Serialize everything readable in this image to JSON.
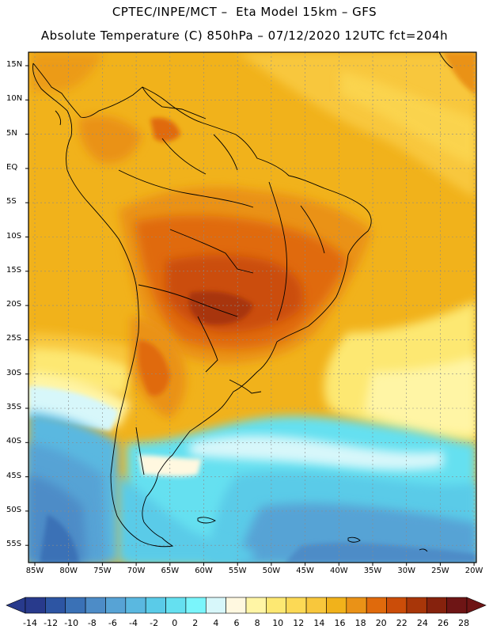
{
  "header": {
    "line1": "CPTEC/INPE/MCT –  Eta Model 15km – GFS",
    "line2": "Absolute Temperature (C) 850hPa – 07/12/2020 12UTC fct=204h"
  },
  "map": {
    "lat_labels": [
      "15N",
      "10N",
      "5N",
      "EQ",
      "5S",
      "10S",
      "15S",
      "20S",
      "25S",
      "30S",
      "35S",
      "40S",
      "45S",
      "50S",
      "55S"
    ],
    "lon_labels": [
      "85W",
      "80W",
      "75W",
      "70W",
      "65W",
      "60W",
      "55W",
      "50W",
      "45W",
      "40W",
      "35W",
      "30W",
      "25W",
      "20W"
    ],
    "frame_color": "#000000",
    "coast_color": "#000000",
    "grid_color": "#8a8a8a"
  },
  "colorbar": {
    "labels": [
      "-14",
      "-12",
      "-10",
      "-8",
      "-6",
      "-4",
      "-2",
      "0",
      "2",
      "4",
      "6",
      "8",
      "10",
      "12",
      "14",
      "16",
      "18",
      "20",
      "22",
      "24",
      "26",
      "28"
    ],
    "colors": [
      "#283a8c",
      "#2d55a3",
      "#3a71b6",
      "#4d8cc7",
      "#57a3d5",
      "#5ab8e0",
      "#5acbe8",
      "#65e0f0",
      "#7af5fb",
      "#d7f7fa",
      "#fff8e0",
      "#fff5a5",
      "#fde872",
      "#fcd955",
      "#f8c73c",
      "#f1b21b",
      "#ea9217",
      "#e06a0c",
      "#cb4d09",
      "#a83609",
      "#86220d",
      "#6e1515"
    ]
  }
}
